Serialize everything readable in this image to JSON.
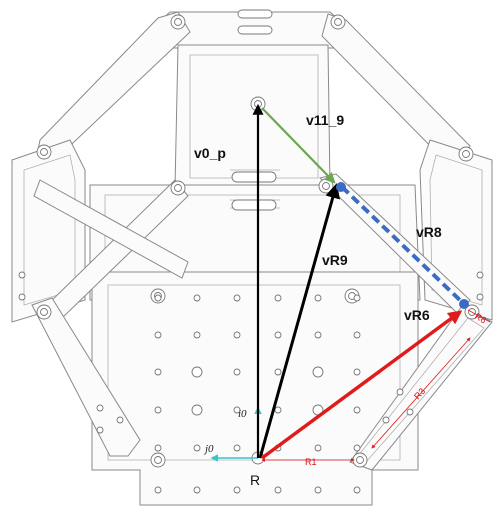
{
  "diagram": {
    "vectors": {
      "v0_p": {
        "label": "v0_p",
        "color": "#000000"
      },
      "v11_9": {
        "label": "v11_9",
        "color": "#6aa84f"
      },
      "vR9": {
        "label": "vR9",
        "color": "#000000"
      },
      "vR8": {
        "label": "vR8",
        "color": "#3c6bc4"
      },
      "vR6": {
        "label": "vR6",
        "color": "#e01b1b"
      }
    },
    "axes": {
      "i0": "i0",
      "j0": "j0",
      "color": "#33c6cf"
    },
    "origin_label": "R",
    "dimensions": {
      "R1": "R1",
      "R3": "R3",
      "R6": "R6",
      "color": "#e01b1b"
    }
  }
}
